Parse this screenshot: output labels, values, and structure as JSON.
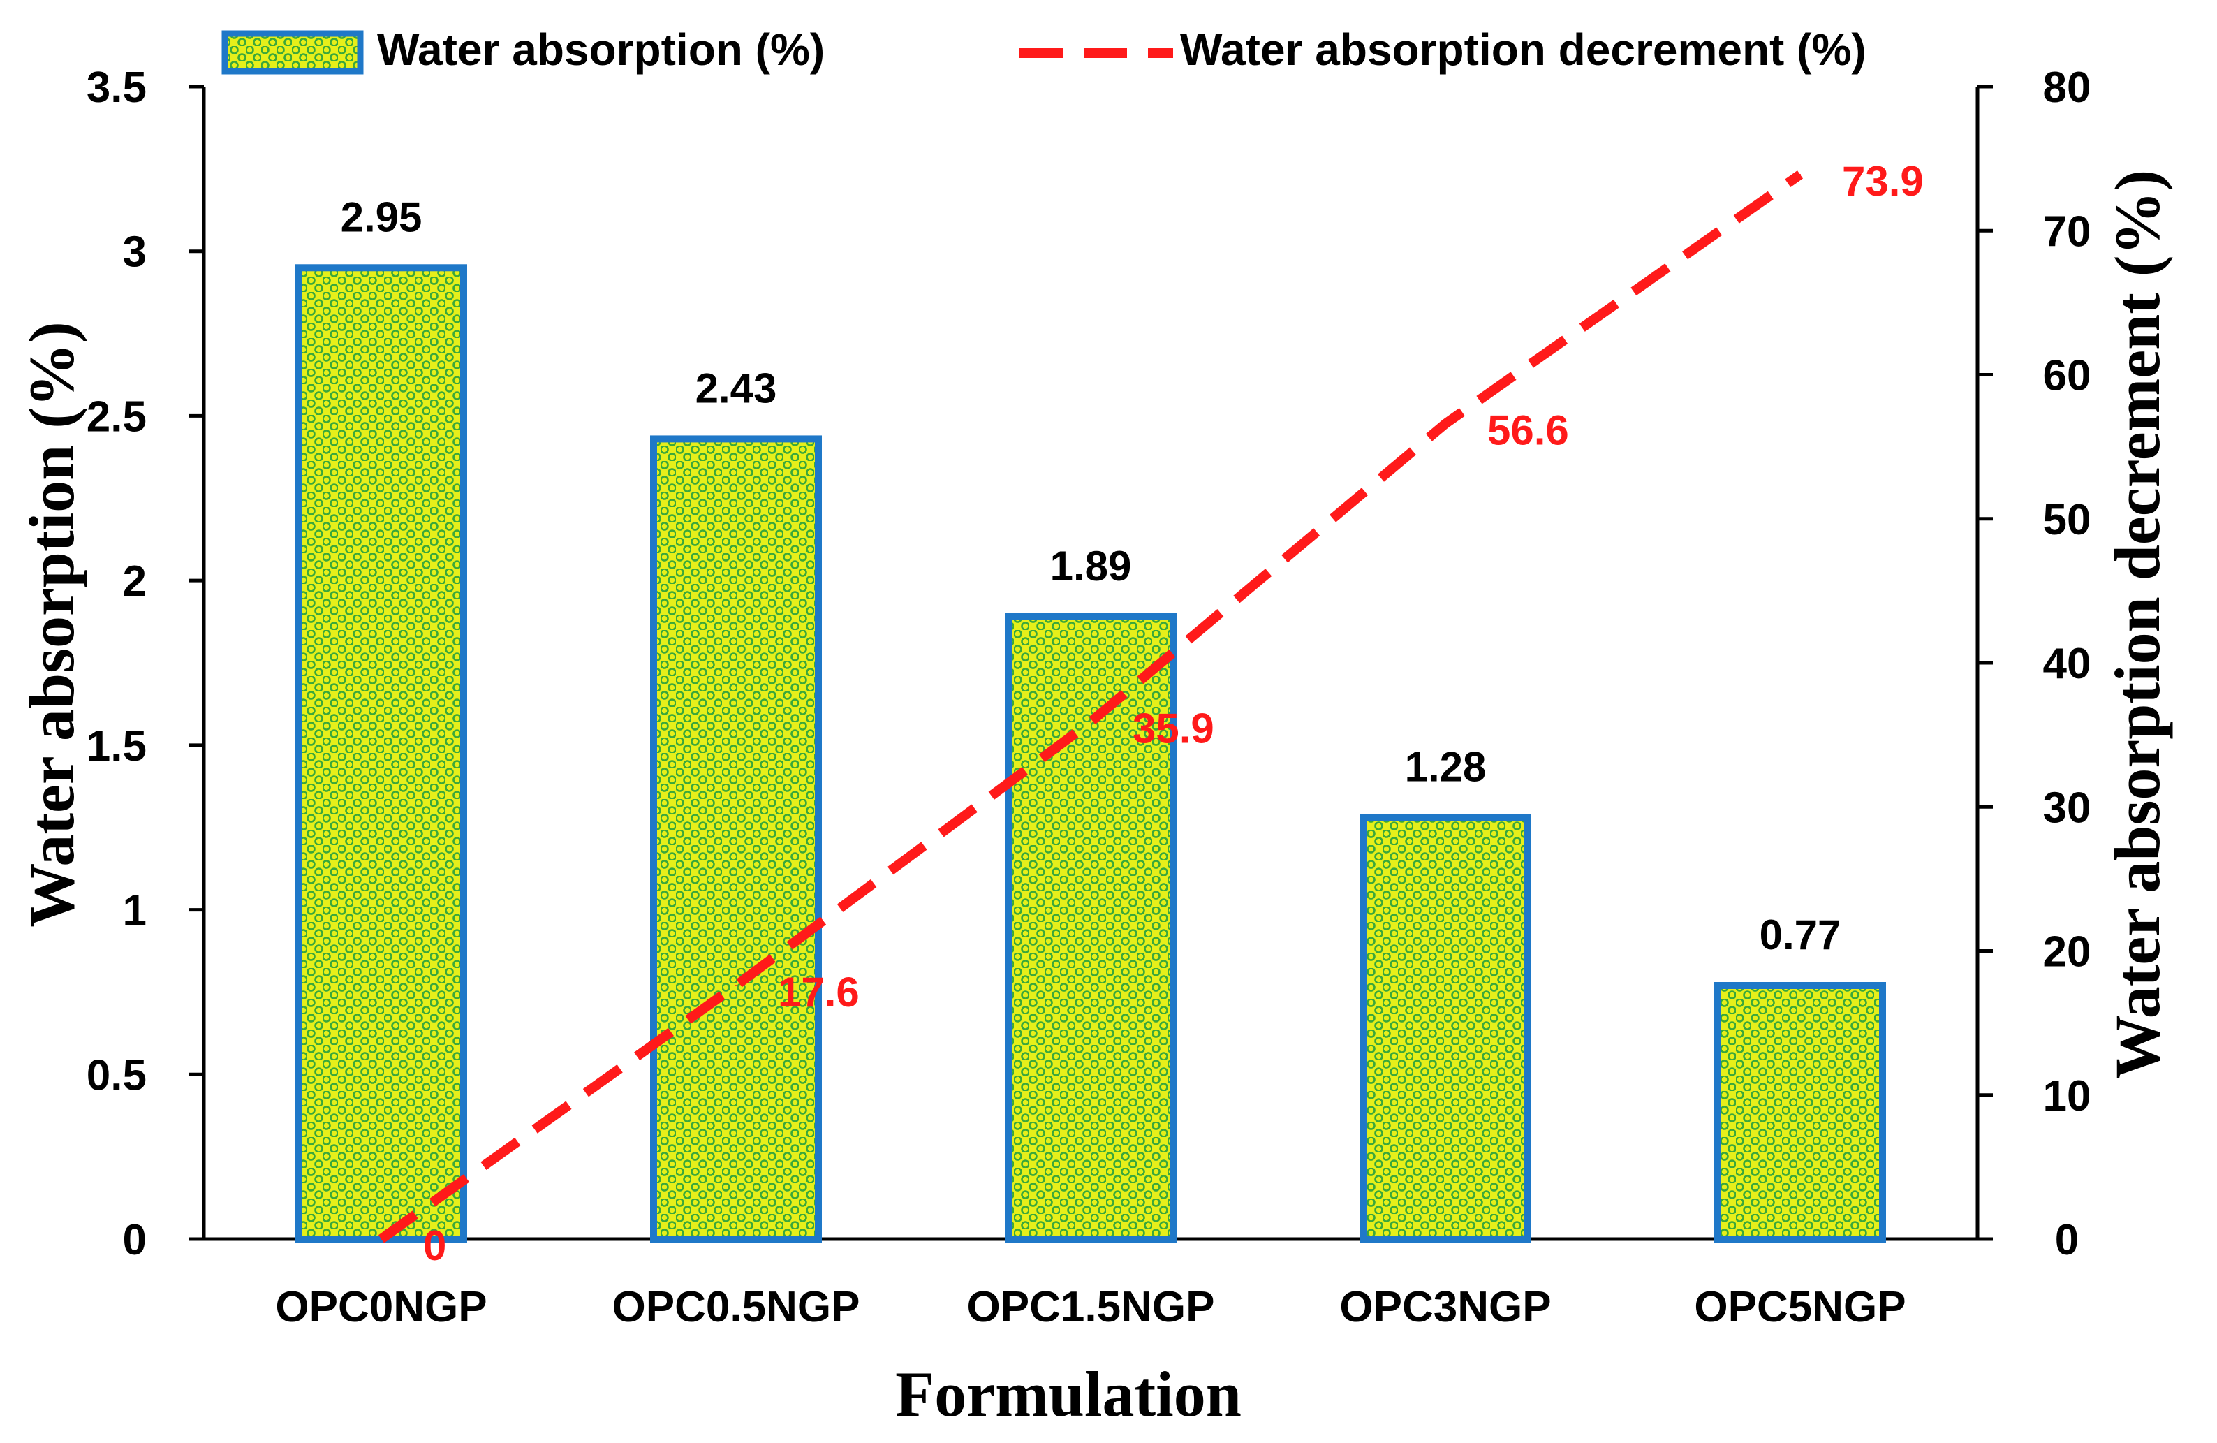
{
  "colors": {
    "bar_fill": "#e6ef1a",
    "bar_dots": "#3aa83a",
    "bar_edge": "#1f78c8",
    "line": "#ff1a1a",
    "axis": "#000000"
  },
  "chart_data": {
    "type": "bar",
    "xlabel": "Formulation",
    "ylabel_left": "Water absorption (%)",
    "ylabel_right": "Water absorption decrement (%)",
    "categories": [
      "OPC0NGP",
      "OPC0.5NGP",
      "OPC1.5NGP",
      "OPC3NGP",
      "OPC5NGP"
    ],
    "y_left_range": [
      0,
      3.5
    ],
    "y_left_ticks": [
      "0",
      "0.5",
      "1",
      "1.5",
      "2",
      "2.5",
      "3",
      "3.5"
    ],
    "y_right_range": [
      0,
      80
    ],
    "y_right_ticks": [
      "0",
      "10",
      "20",
      "30",
      "40",
      "50",
      "60",
      "70",
      "80"
    ],
    "grid": false,
    "legend_position": "top",
    "series": [
      {
        "name": "Water absorption (%)",
        "kind": "bar",
        "axis": "left",
        "values": [
          2.95,
          2.43,
          1.89,
          1.28,
          0.77
        ],
        "labels": [
          "2.95",
          "2.43",
          "1.89",
          "1.28",
          "0.77"
        ]
      },
      {
        "name": "Water absorption decrement (%)",
        "kind": "line",
        "style": "dashed",
        "axis": "right",
        "values": [
          0,
          17.6,
          35.9,
          56.6,
          73.9
        ],
        "labels": [
          "0",
          "17.6",
          "35.9",
          "56.6",
          "73.9"
        ]
      }
    ]
  }
}
